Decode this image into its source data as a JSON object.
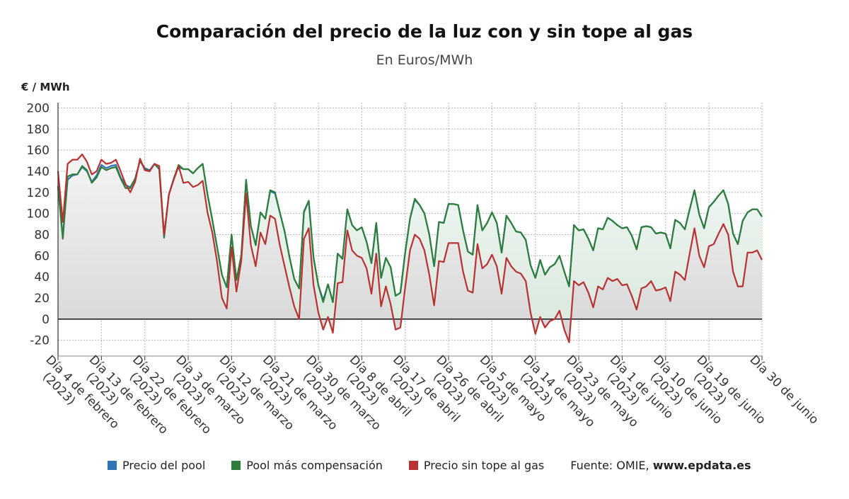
{
  "title": "Comparación del precio de la luz con y sin tope al gas",
  "subtitle": "En Euros/MWh",
  "unit_label": "€ / MWh",
  "legend": [
    {
      "label": "Precio del pool",
      "color": "#2e75b6"
    },
    {
      "label": "Pool más compensación",
      "color": "#2e7d3a"
    },
    {
      "label": "Precio sin tope al gas",
      "color": "#b83232"
    }
  ],
  "source": {
    "prefix": "Fuente: OMIE, ",
    "site": "www.epdata.es"
  },
  "chart_data": {
    "type": "line",
    "ylim": [
      -35,
      205
    ],
    "yticks": [
      -20,
      0,
      20,
      40,
      60,
      80,
      100,
      120,
      140,
      160,
      180,
      200
    ],
    "grid": true,
    "legend_position": "bottom",
    "xtick_labels": [
      "Día 4 de febrero (2023)",
      "Día 13 de febrero (2023)",
      "Día 22 de febrero (2023)",
      "Día 3 de marzo (2023)",
      "Día 12 de marzo (2023)",
      "Día 21 de marzo (2023)",
      "Día 30 de marzo (2023)",
      "Día 8 de abril (2023)",
      "Día 17 de abril (2023)",
      "Día 26 de abril (2023)",
      "Día 5 de mayo (2023)",
      "Día 14 de mayo (2023)",
      "Día 23 de mayo (2023)",
      "Día 1 de junio (2023)",
      "Día 10 de junio (2023)",
      "Día 19 de junio (2023)",
      "Día 30 de junio"
    ],
    "x": [
      "2023-02-04",
      "2023-02-05",
      "2023-02-06",
      "2023-02-07",
      "2023-02-08",
      "2023-02-09",
      "2023-02-10",
      "2023-02-11",
      "2023-02-12",
      "2023-02-13",
      "2023-02-14",
      "2023-02-15",
      "2023-02-16",
      "2023-02-17",
      "2023-02-18",
      "2023-02-19",
      "2023-02-20",
      "2023-02-21",
      "2023-02-22",
      "2023-02-23",
      "2023-02-24",
      "2023-02-25",
      "2023-02-26",
      "2023-02-27",
      "2023-02-28",
      "2023-03-01",
      "2023-03-02",
      "2023-03-03",
      "2023-03-04",
      "2023-03-05",
      "2023-03-06",
      "2023-03-07",
      "2023-03-08",
      "2023-03-09",
      "2023-03-10",
      "2023-03-11",
      "2023-03-12",
      "2023-03-13",
      "2023-03-14",
      "2023-03-15",
      "2023-03-16",
      "2023-03-17",
      "2023-03-18",
      "2023-03-19",
      "2023-03-20",
      "2023-03-21",
      "2023-03-22",
      "2023-03-23",
      "2023-03-24",
      "2023-03-25",
      "2023-03-26",
      "2023-03-27",
      "2023-03-28",
      "2023-03-29",
      "2023-03-30",
      "2023-03-31",
      "2023-04-01",
      "2023-04-02",
      "2023-04-03",
      "2023-04-04",
      "2023-04-05",
      "2023-04-06",
      "2023-04-07",
      "2023-04-08",
      "2023-04-09",
      "2023-04-10",
      "2023-04-11",
      "2023-04-12",
      "2023-04-13",
      "2023-04-14",
      "2023-04-15",
      "2023-04-16",
      "2023-04-17",
      "2023-04-18",
      "2023-04-19",
      "2023-04-20",
      "2023-04-21",
      "2023-04-22",
      "2023-04-23",
      "2023-04-24",
      "2023-04-25",
      "2023-04-26",
      "2023-04-27",
      "2023-04-28",
      "2023-04-29",
      "2023-04-30",
      "2023-05-01",
      "2023-05-02",
      "2023-05-03",
      "2023-05-04",
      "2023-05-05",
      "2023-05-06",
      "2023-05-07",
      "2023-05-08",
      "2023-05-09",
      "2023-05-10",
      "2023-05-11",
      "2023-05-12",
      "2023-05-13",
      "2023-05-14",
      "2023-05-15",
      "2023-05-16",
      "2023-05-17",
      "2023-05-18",
      "2023-05-19",
      "2023-05-20",
      "2023-05-21",
      "2023-05-22",
      "2023-05-23",
      "2023-05-24",
      "2023-05-25",
      "2023-05-26",
      "2023-05-27",
      "2023-05-28",
      "2023-05-29",
      "2023-05-30",
      "2023-05-31",
      "2023-06-01",
      "2023-06-02",
      "2023-06-03",
      "2023-06-04",
      "2023-06-05",
      "2023-06-06",
      "2023-06-07",
      "2023-06-08",
      "2023-06-09",
      "2023-06-10",
      "2023-06-11",
      "2023-06-12",
      "2023-06-13",
      "2023-06-14",
      "2023-06-15",
      "2023-06-16",
      "2023-06-17",
      "2023-06-18",
      "2023-06-19",
      "2023-06-20",
      "2023-06-21",
      "2023-06-22",
      "2023-06-23",
      "2023-06-24",
      "2023-06-25",
      "2023-06-26",
      "2023-06-27",
      "2023-06-28",
      "2023-06-29",
      "2023-06-30"
    ],
    "series": [
      {
        "name": "Precio del pool",
        "color": "#2e75b6",
        "values": [
          125,
          78,
          132,
          136,
          137,
          144,
          140,
          130,
          136,
          146,
          143,
          145,
          146,
          134,
          127,
          125,
          133,
          150,
          143,
          141,
          147,
          142,
          78,
          118,
          133,
          144,
          142,
          142,
          138,
          143,
          147,
          118,
          94,
          68,
          42,
          30,
          80,
          37,
          60,
          131,
          88,
          70,
          101,
          95,
          121,
          119,
          101,
          83,
          59,
          38,
          29,
          101,
          112,
          58,
          32,
          18,
          33,
          16,
          62,
          57,
          104,
          89,
          84,
          87,
          73,
          53,
          91,
          39,
          58,
          49,
          22,
          25,
          63,
          95,
          113,
          108,
          100,
          80,
          50,
          92,
          91,
          109,
          109,
          108,
          84,
          64,
          61,
          108,
          84,
          91,
          101,
          91,
          63,
          98,
          91,
          83,
          82,
          75,
          51,
          39,
          56,
          42,
          49,
          52,
          60,
          45,
          31,
          89,
          84,
          85,
          76,
          65,
          86,
          85,
          96,
          93,
          89,
          86,
          87,
          79,
          66,
          87,
          88,
          87,
          81,
          82,
          81,
          67,
          94,
          91,
          85,
          104,
          122,
          99,
          86,
          106,
          111,
          117,
          122,
          109,
          81,
          71,
          93,
          101,
          104,
          104,
          97
        ]
      },
      {
        "name": "Pool más compensación",
        "color": "#2e7d3a",
        "values": [
          126,
          76,
          135,
          137,
          137,
          145,
          141,
          129,
          134,
          144,
          141,
          143,
          144,
          133,
          124,
          124,
          133,
          150,
          142,
          140,
          147,
          142,
          77,
          118,
          133,
          146,
          142,
          142,
          138,
          143,
          147,
          118,
          94,
          68,
          42,
          30,
          80,
          37,
          60,
          132,
          88,
          70,
          101,
          95,
          122,
          120,
          101,
          83,
          59,
          38,
          29,
          102,
          112,
          58,
          32,
          16,
          33,
          16,
          62,
          57,
          104,
          89,
          84,
          87,
          73,
          53,
          91,
          39,
          58,
          49,
          22,
          25,
          63,
          95,
          114,
          108,
          100,
          80,
          50,
          92,
          91,
          109,
          109,
          108,
          84,
          64,
          61,
          108,
          84,
          91,
          101,
          91,
          63,
          98,
          91,
          83,
          82,
          75,
          51,
          39,
          56,
          42,
          49,
          52,
          60,
          45,
          31,
          89,
          84,
          85,
          76,
          65,
          86,
          85,
          96,
          93,
          89,
          86,
          87,
          79,
          66,
          87,
          88,
          87,
          81,
          82,
          81,
          67,
          94,
          91,
          85,
          104,
          122,
          99,
          86,
          106,
          111,
          117,
          122,
          109,
          81,
          71,
          93,
          101,
          104,
          104,
          97
        ]
      },
      {
        "name": "Precio sin tope al gas",
        "color": "#b83232",
        "values": [
          140,
          92,
          147,
          151,
          151,
          156,
          149,
          137,
          140,
          151,
          147,
          148,
          151,
          140,
          128,
          120,
          130,
          152,
          141,
          140,
          147,
          145,
          80,
          118,
          132,
          145,
          129,
          130,
          125,
          127,
          131,
          101,
          82,
          54,
          20,
          10,
          68,
          26,
          55,
          119,
          70,
          50,
          82,
          71,
          98,
          95,
          70,
          50,
          30,
          12,
          0,
          76,
          86,
          32,
          6,
          -10,
          2,
          -13,
          34,
          35,
          84,
          65,
          60,
          58,
          48,
          24,
          62,
          12,
          31,
          14,
          -10,
          -8,
          30,
          65,
          80,
          76,
          65,
          42,
          13,
          55,
          54,
          72,
          72,
          72,
          45,
          27,
          25,
          71,
          48,
          52,
          61,
          50,
          24,
          58,
          50,
          45,
          43,
          36,
          6,
          -14,
          2,
          -8,
          -2,
          0,
          8,
          -10,
          -22,
          36,
          32,
          35,
          25,
          11,
          31,
          28,
          39,
          36,
          38,
          32,
          33,
          22,
          9,
          29,
          31,
          36,
          27,
          28,
          30,
          17,
          45,
          42,
          37,
          62,
          86,
          60,
          49,
          69,
          71,
          81,
          90,
          80,
          45,
          31,
          31,
          63,
          63,
          65,
          56
        ]
      }
    ]
  }
}
